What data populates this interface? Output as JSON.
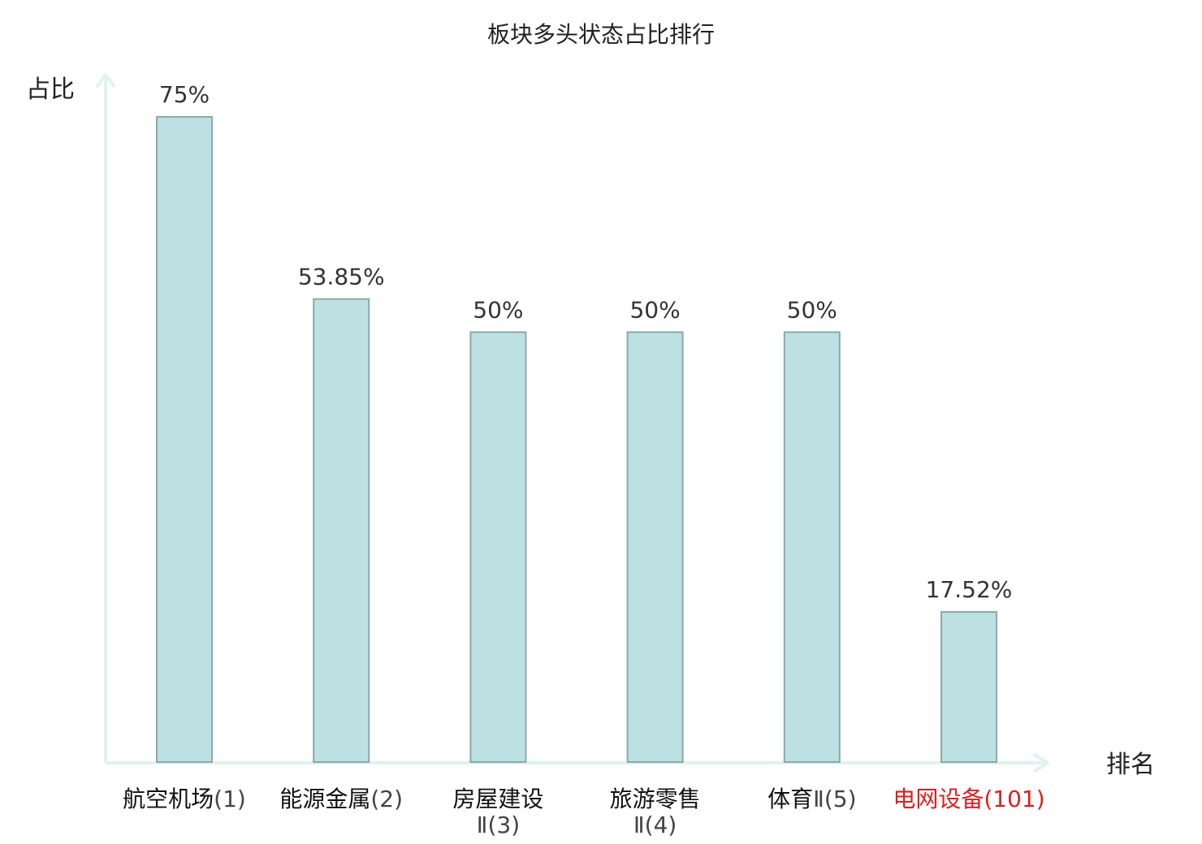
{
  "chart_data": {
    "type": "bar",
    "title": "板块多头状态占比排行",
    "ylabel": "占比",
    "xlabel": "排名",
    "ylim": [
      0,
      80
    ],
    "grid": false,
    "legend": "none",
    "categories": [
      {
        "name": "航空机场",
        "rank": "(1)",
        "highlight": false
      },
      {
        "name": "能源金属",
        "rank": "(2)",
        "highlight": false
      },
      {
        "name": "房屋建设",
        "rank": "Ⅱ(3)",
        "highlight": false
      },
      {
        "name": "旅游零售",
        "rank": "Ⅱ(4)",
        "highlight": false
      },
      {
        "name": "体育",
        "rank": "Ⅱ(5)",
        "highlight": false
      },
      {
        "name": "电网设备",
        "rank": "(101)",
        "highlight": true
      }
    ],
    "values": [
      75,
      53.85,
      50,
      50,
      50,
      17.52
    ],
    "value_labels": [
      "75%",
      "53.85%",
      "50%",
      "50%",
      "50%",
      "17.52%"
    ]
  },
  "colors": {
    "bar_fill": "#bde1e3",
    "bar_stroke": "#8aa8a9",
    "axis": "#dff2ef",
    "highlight_text": "#e01e1e"
  }
}
